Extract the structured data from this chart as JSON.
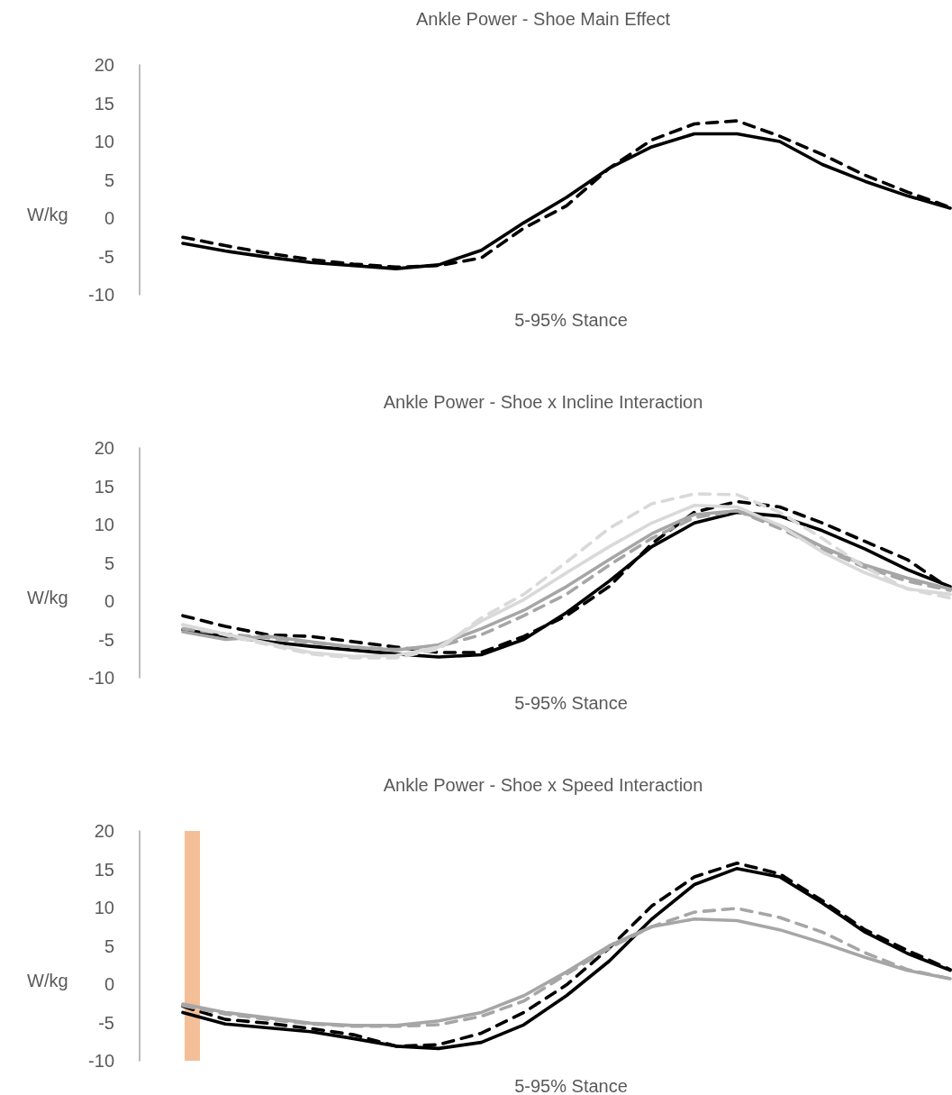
{
  "chart_data": [
    {
      "type": "line",
      "title": "Ankle Power - Shoe Main Effect",
      "xlabel": "5-95% Stance",
      "ylabel": "W/kg",
      "categories": [
        null,
        null,
        null,
        null,
        null,
        null,
        null,
        null,
        null,
        null,
        null,
        null,
        null,
        null,
        null,
        null,
        null,
        null,
        null
      ],
      "ylim": [
        -10,
        20
      ],
      "yticks": [
        -10,
        -5,
        0,
        5,
        10,
        15,
        20
      ],
      "tick_labels": "y",
      "grid": false,
      "marker": "none",
      "series": [
        {
          "color": "#000000",
          "line_style": "solid",
          "values": [
            -3.3,
            -4.3,
            -5.1,
            -5.8,
            -6.2,
            -6.6,
            -6.1,
            -4.2,
            -0.6,
            2.7,
            6.5,
            9.3,
            11.0,
            11.0,
            10.0,
            7.0,
            4.8,
            2.9,
            1.3
          ]
        },
        {
          "color": "#000000",
          "line_style": "dashed",
          "values": [
            -2.5,
            -3.6,
            -4.6,
            -5.4,
            -6.0,
            -6.4,
            -6.2,
            -5.2,
            -1.3,
            1.6,
            6.5,
            10.2,
            12.3,
            12.7,
            10.7,
            8.3,
            5.6,
            3.4,
            1.4
          ]
        }
      ]
    },
    {
      "type": "line",
      "title": "Ankle Power - Shoe x Incline Interaction",
      "xlabel": "5-95% Stance",
      "ylabel": "W/kg",
      "categories": [
        null,
        null,
        null,
        null,
        null,
        null,
        null,
        null,
        null,
        null,
        null,
        null,
        null,
        null,
        null,
        null,
        null,
        null,
        null
      ],
      "ylim": [
        -10,
        20
      ],
      "yticks": [
        -10,
        -5,
        0,
        5,
        10,
        15,
        20
      ],
      "tick_labels": "y",
      "grid": false,
      "marker": "none",
      "series": [
        {
          "color": "#000000",
          "line_style": "solid",
          "values": [
            -3.7,
            -4.6,
            -5.3,
            -5.9,
            -6.4,
            -6.9,
            -7.3,
            -7.0,
            -5.0,
            -1.5,
            2.6,
            7.1,
            10.2,
            11.6,
            11.1,
            9.2,
            6.8,
            4.1,
            1.9
          ]
        },
        {
          "color": "#000000",
          "line_style": "dashed",
          "values": [
            -1.9,
            -3.3,
            -4.4,
            -4.6,
            -5.3,
            -6.0,
            -6.7,
            -6.7,
            -4.6,
            -1.9,
            1.9,
            7.5,
            11.6,
            13.0,
            12.3,
            10.2,
            7.8,
            5.4,
            1.6
          ]
        },
        {
          "color": "#a6a6a6",
          "line_style": "solid",
          "values": [
            -4.0,
            -5.0,
            -4.6,
            -5.3,
            -6.0,
            -6.4,
            -5.7,
            -3.6,
            -1.2,
            1.9,
            5.4,
            8.8,
            11.3,
            11.8,
            9.9,
            7.1,
            4.7,
            3.0,
            1.6
          ]
        },
        {
          "color": "#a6a6a6",
          "line_style": "dashed",
          "values": [
            -3.6,
            -4.3,
            -4.8,
            -5.4,
            -6.0,
            -6.3,
            -5.9,
            -4.4,
            -1.9,
            0.9,
            4.7,
            8.2,
            10.9,
            11.8,
            9.5,
            6.8,
            4.4,
            2.6,
            1.4
          ]
        },
        {
          "color": "#d9d9d9",
          "line_style": "solid",
          "values": [
            -3.1,
            -4.3,
            -5.5,
            -6.7,
            -7.2,
            -7.1,
            -6.0,
            -2.6,
            0.2,
            3.7,
            7.1,
            10.2,
            12.5,
            12.3,
            9.9,
            6.4,
            3.7,
            1.6,
            0.9
          ]
        },
        {
          "color": "#d9d9d9",
          "line_style": "dashed",
          "values": [
            -3.1,
            -4.4,
            -5.7,
            -6.9,
            -7.4,
            -7.4,
            -6.3,
            -2.2,
            0.9,
            5.1,
            9.5,
            12.7,
            14.0,
            13.9,
            11.6,
            8.2,
            4.4,
            1.6,
            0.4
          ]
        }
      ]
    },
    {
      "type": "line",
      "title": "Ankle Power - Shoe x Speed Interaction",
      "xlabel": "5-95% Stance",
      "ylabel": "W/kg",
      "categories": [
        null,
        null,
        null,
        null,
        null,
        null,
        null,
        null,
        null,
        null,
        null,
        null,
        null,
        null,
        null,
        null,
        null,
        null,
        null
      ],
      "ylim": [
        -10,
        20
      ],
      "yticks": [
        -10,
        -5,
        0,
        5,
        10,
        15,
        20
      ],
      "tick_labels": "y",
      "grid": false,
      "marker": "none",
      "series": [
        {
          "color": "#000000",
          "line_style": "solid",
          "values": [
            -3.7,
            -5.2,
            -5.7,
            -6.2,
            -7.1,
            -8.1,
            -8.4,
            -7.6,
            -5.3,
            -1.5,
            3.0,
            8.5,
            13.0,
            15.1,
            14.0,
            10.6,
            6.8,
            4.0,
            1.8
          ]
        },
        {
          "color": "#000000",
          "line_style": "dashed",
          "values": [
            -2.9,
            -4.6,
            -5.1,
            -5.8,
            -6.6,
            -8.1,
            -7.9,
            -6.4,
            -3.7,
            -0.1,
            4.7,
            10.2,
            14.0,
            15.8,
            14.4,
            10.9,
            7.1,
            4.4,
            1.9
          ]
        },
        {
          "color": "#a6a6a6",
          "line_style": "solid",
          "values": [
            -2.6,
            -3.7,
            -4.4,
            -5.1,
            -5.4,
            -5.4,
            -4.8,
            -3.7,
            -1.5,
            1.6,
            5.0,
            7.5,
            8.5,
            8.3,
            7.1,
            5.4,
            3.5,
            1.8,
            0.7
          ]
        },
        {
          "color": "#a6a6a6",
          "line_style": "dashed",
          "values": [
            -2.8,
            -3.9,
            -4.6,
            -5.2,
            -5.5,
            -5.5,
            -5.3,
            -4.2,
            -2.2,
            1.3,
            4.7,
            7.5,
            9.4,
            9.9,
            8.7,
            6.8,
            4.1,
            1.9,
            0.7
          ]
        }
      ]
    }
  ]
}
